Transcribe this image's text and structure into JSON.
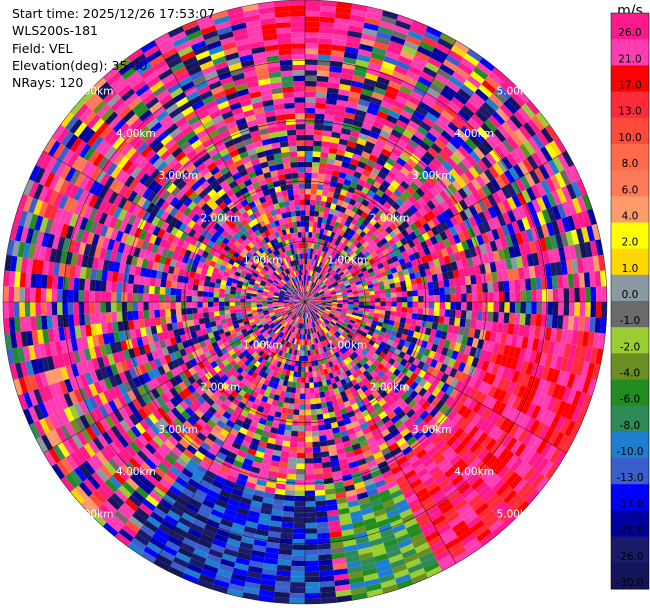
{
  "header": {
    "start_time": "Start time: 2025/12/26 17:53:07",
    "instrument": "WLS200s-181",
    "field": "Field: VEL",
    "elevation": "Elevation(deg): 35.00",
    "nrays": "NRays: 120"
  },
  "chart_data": {
    "type": "heatmap",
    "projection": "polar-ppi",
    "field": "VEL",
    "unit": "m/s",
    "nrays": 120,
    "range_rings_km": [
      1.0,
      2.0,
      3.0,
      4.0,
      5.0
    ],
    "ring_labels": [
      "1.00km",
      "2.00km",
      "3.00km",
      "4.00km",
      "5.00km"
    ],
    "colorbar": {
      "label": "m/s",
      "ticks": [
        "26.0",
        "21.0",
        "17.0",
        "13.0",
        "10.0",
        "8.0",
        "6.0",
        "4.0",
        "2.0",
        "1.0",
        "0.0",
        "-1.0",
        "-2.0",
        "-4.0",
        "-6.0",
        "-8.0",
        "-10.0",
        "-13.0",
        "-17.0",
        "-21.0",
        "-26.0",
        "-30.0"
      ],
      "colors": [
        "#ff1a8c",
        "#ff3db0",
        "#ff0000",
        "#ff2a3a",
        "#ff4a3a",
        "#ff6a4a",
        "#ff7a5a",
        "#ff9a6a",
        "#ffff00",
        "#ffd700",
        "#8a9aa0",
        "#6a6a6a",
        "#9acd32",
        "#6b8e23",
        "#228b22",
        "#2e8b57",
        "#1e7fd0",
        "#3a5fcd",
        "#0000ff",
        "#0000a0",
        "#1a1a6a",
        "#14145a"
      ]
    },
    "notable_patterns": [
      {
        "region": "southeast",
        "km": [
          3.0,
          5.0
        ],
        "values": [
          17.0,
          26.0
        ]
      },
      {
        "region": "south",
        "km": [
          3.0,
          5.0
        ],
        "values": [
          -30.0,
          -10.0
        ]
      },
      {
        "region": "north",
        "km": [
          4.0,
          5.0
        ],
        "values": [
          21.0,
          26.0
        ]
      }
    ]
  }
}
